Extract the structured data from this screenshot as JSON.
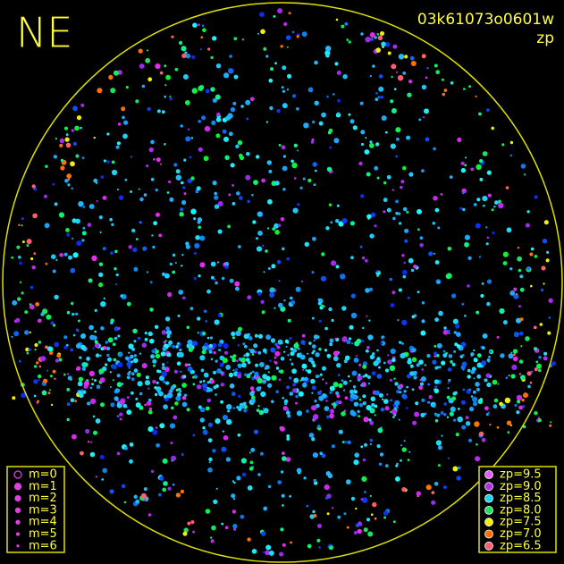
{
  "header": {
    "label": "NE",
    "frame_id": "03k61073o0601w",
    "mode": "zp"
  },
  "legend_m": {
    "items": [
      "m=0",
      "m=1",
      "m=2",
      "m=3",
      "m=4",
      "m=5",
      "m=6"
    ]
  },
  "legend_zp": {
    "items": [
      {
        "label": "zp=9.5",
        "color": "#e060f0"
      },
      {
        "label": "zp=9.0",
        "color": "#b030e0"
      },
      {
        "label": "zp=8.5",
        "color": "#20d0f0"
      },
      {
        "label": "zp=8.0",
        "color": "#20e060"
      },
      {
        "label": "zp=7.5",
        "color": "#f0f000"
      },
      {
        "label": "zp=7.0",
        "color": "#ff7000"
      },
      {
        "label": "zp=6.5",
        "color": "#ff6070"
      }
    ]
  }
}
